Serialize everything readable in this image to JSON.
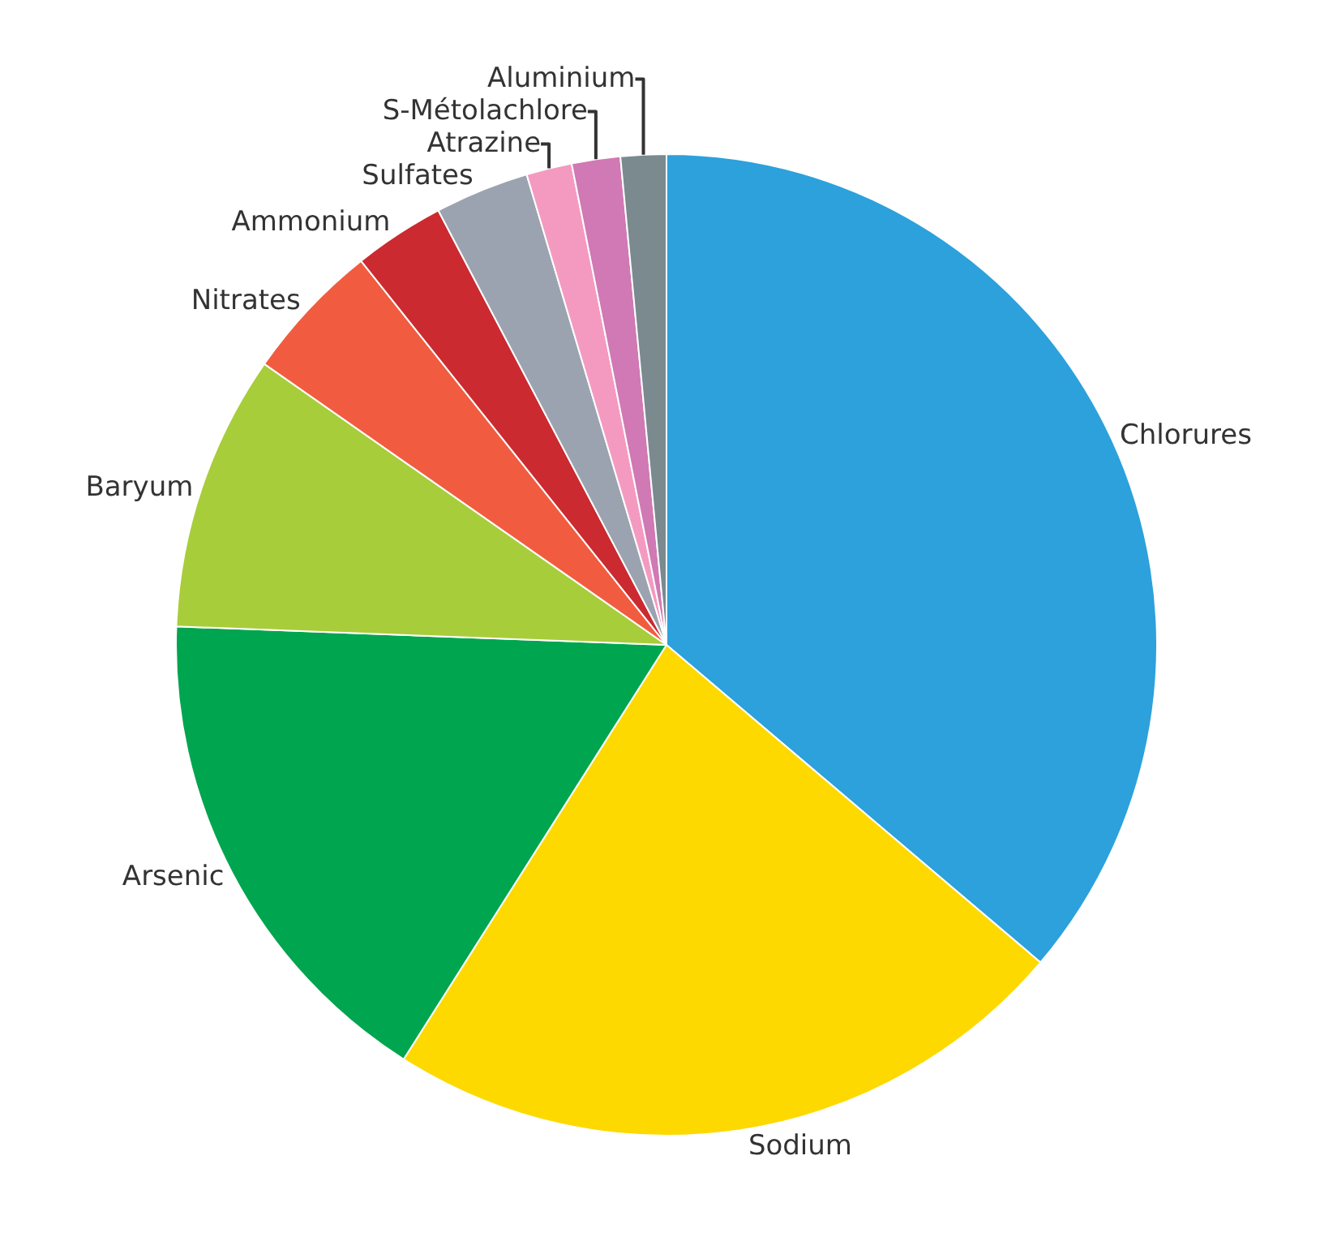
{
  "chart_data": {
    "type": "pie",
    "categories": [
      "Chlorures",
      "Sodium",
      "Arsenic",
      "Baryum",
      "Nitrates",
      "Ammonium",
      "Sulfates",
      "Atrazine",
      "S-Métolachlore",
      "Aluminium"
    ],
    "values": [
      36.2,
      22.8,
      16.6,
      9.1,
      4.6,
      3.0,
      3.1,
      1.5,
      1.6,
      1.5
    ],
    "colors": [
      "#2ca1dc",
      "#fdd900",
      "#00a54f",
      "#a8cd3a",
      "#f15c40",
      "#cb2a30",
      "#9ca3b0",
      "#f49ac1",
      "#d079b4",
      "#7a8a8f"
    ]
  }
}
